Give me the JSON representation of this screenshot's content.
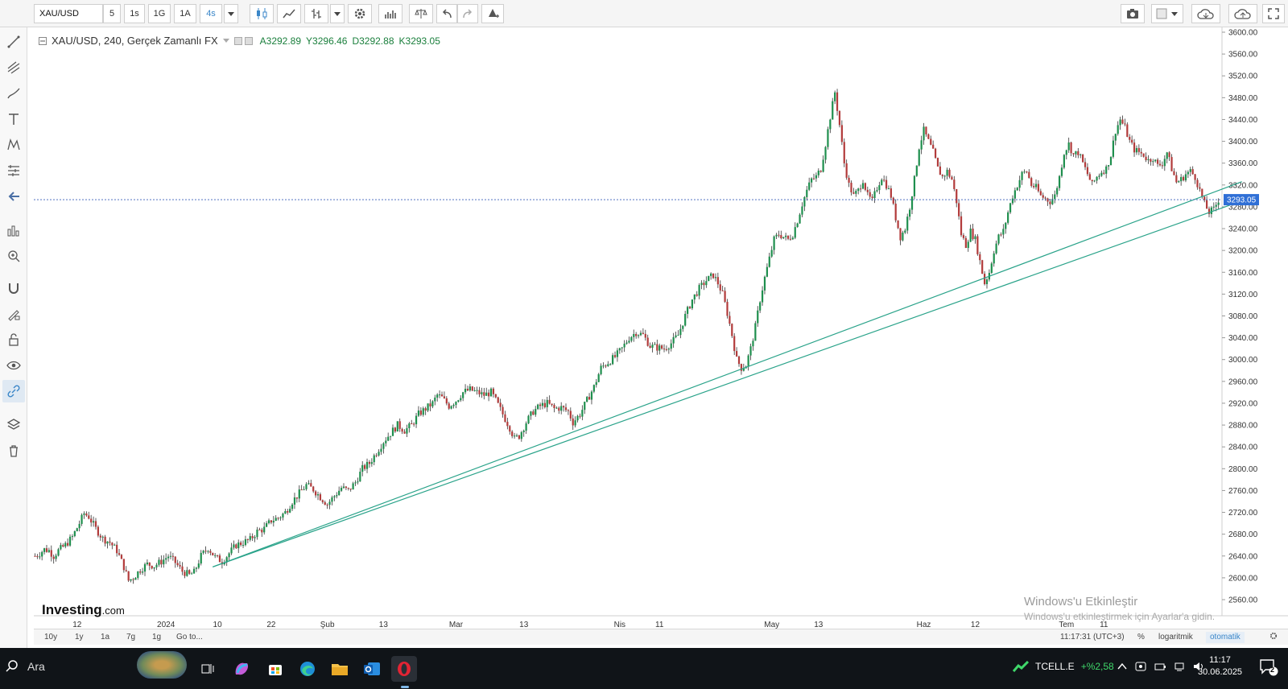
{
  "topbar": {
    "symbol": "XAU/USD",
    "intervals": [
      "5",
      "1s",
      "1G",
      "1A",
      "4s"
    ],
    "active_interval": "4s"
  },
  "legend": {
    "title": "XAU/USD, 240, Gerçek Zamanlı FX",
    "open_label": "A",
    "open": "3292.89",
    "high_label": "Y",
    "high": "3296.46",
    "low_label": "D",
    "low": "3292.88",
    "close_label": "K",
    "close": "3293.05"
  },
  "brand": {
    "logo": "Investing",
    "logo_suffix": ".com"
  },
  "watermark": {
    "title": "Windows'u Etkinleştir",
    "subtitle": "Windows'u etkinleştirmek için Ayarlar'a gidin."
  },
  "price_axis": {
    "ticks": [
      "3600.00",
      "3560.00",
      "3520.00",
      "3480.00",
      "3440.00",
      "3400.00",
      "3360.00",
      "3320.00",
      "3280.00",
      "3240.00",
      "3200.00",
      "3160.00",
      "3120.00",
      "3080.00",
      "3040.00",
      "3000.00",
      "2960.00",
      "2920.00",
      "2880.00",
      "2840.00",
      "2800.00",
      "2760.00",
      "2720.00",
      "2680.00",
      "2640.00",
      "2600.00",
      "2560.00"
    ],
    "current_price_label": "3293.05"
  },
  "time_axis": {
    "ticks": [
      "12",
      "2024",
      "10",
      "22",
      "Şub",
      "13",
      "Mar",
      "13",
      "Nis",
      "11",
      "May",
      "13",
      "Haz",
      "12",
      "Tem",
      "11"
    ]
  },
  "bottombar": {
    "ranges": [
      "10y",
      "1y",
      "1a",
      "7g",
      "1g",
      "Go to..."
    ],
    "clock": "11:17:31 (UTC+3)",
    "percent": "%",
    "log": "logaritmik",
    "auto": "otomatik"
  },
  "taskbar": {
    "search": "Ara",
    "ticker": "TCELL.E",
    "ticker_change": "+%2,58",
    "time": "11:17",
    "date": "30.06.2025",
    "notifications": "2"
  },
  "chart_data": {
    "type": "candlestick",
    "title": "XAU/USD, 240, Gerçek Zamanlı FX",
    "ylim": [
      2540,
      3610
    ],
    "up_color": "#1f8f4e",
    "down_color": "#b23b3b",
    "close_path": [
      [
        0,
        2640
      ],
      [
        2,
        2645
      ],
      [
        4,
        2652
      ],
      [
        6,
        2650
      ],
      [
        8,
        2640
      ],
      [
        10,
        2650
      ],
      [
        13,
        2660
      ],
      [
        16,
        2675
      ],
      [
        19,
        2700
      ],
      [
        21,
        2718
      ],
      [
        23,
        2712
      ],
      [
        26,
        2690
      ],
      [
        29,
        2672
      ],
      [
        32,
        2665
      ],
      [
        35,
        2650
      ],
      [
        38,
        2620
      ],
      [
        40,
        2595
      ],
      [
        42,
        2600
      ],
      [
        45,
        2615
      ],
      [
        48,
        2625
      ],
      [
        51,
        2622
      ],
      [
        54,
        2630
      ],
      [
        57,
        2640
      ],
      [
        60,
        2628
      ],
      [
        63,
        2612
      ],
      [
        66,
        2605
      ],
      [
        68,
        2610
      ],
      [
        71,
        2640
      ],
      [
        74,
        2655
      ],
      [
        77,
        2638
      ],
      [
        80,
        2630
      ],
      [
        83,
        2645
      ],
      [
        86,
        2660
      ],
      [
        89,
        2665
      ],
      [
        92,
        2670
      ],
      [
        95,
        2685
      ],
      [
        98,
        2690
      ],
      [
        101,
        2705
      ],
      [
        104,
        2710
      ],
      [
        107,
        2720
      ],
      [
        110,
        2740
      ],
      [
        113,
        2755
      ],
      [
        116,
        2770
      ],
      [
        119,
        2762
      ],
      [
        122,
        2748
      ],
      [
        125,
        2735
      ],
      [
        128,
        2750
      ],
      [
        131,
        2765
      ],
      [
        134,
        2760
      ],
      [
        137,
        2775
      ],
      [
        140,
        2800
      ],
      [
        143,
        2810
      ],
      [
        146,
        2830
      ],
      [
        149,
        2850
      ],
      [
        152,
        2865
      ],
      [
        155,
        2880
      ],
      [
        158,
        2870
      ],
      [
        161,
        2880
      ],
      [
        164,
        2900
      ],
      [
        167,
        2910
      ],
      [
        170,
        2920
      ],
      [
        172,
        2935
      ],
      [
        174,
        2930
      ],
      [
        177,
        2915
      ],
      [
        180,
        2925
      ],
      [
        183,
        2940
      ],
      [
        186,
        2945
      ],
      [
        189,
        2940
      ],
      [
        192,
        2935
      ],
      [
        195,
        2940
      ],
      [
        197,
        2925
      ],
      [
        200,
        2900
      ],
      [
        203,
        2875
      ],
      [
        205,
        2855
      ],
      [
        207,
        2860
      ],
      [
        210,
        2885
      ],
      [
        213,
        2905
      ],
      [
        216,
        2915
      ],
      [
        219,
        2920
      ],
      [
        222,
        2910
      ],
      [
        225,
        2912
      ],
      [
        228,
        2905
      ],
      [
        230,
        2885
      ],
      [
        233,
        2900
      ],
      [
        236,
        2925
      ],
      [
        239,
        2950
      ],
      [
        242,
        2985
      ],
      [
        245,
        2995
      ],
      [
        248,
        3005
      ],
      [
        251,
        3020
      ],
      [
        254,
        3040
      ],
      [
        257,
        3050
      ],
      [
        260,
        3045
      ],
      [
        263,
        3025
      ],
      [
        266,
        3022
      ],
      [
        269,
        3020
      ],
      [
        272,
        3030
      ],
      [
        275,
        3045
      ],
      [
        278,
        3080
      ],
      [
        281,
        3110
      ],
      [
        284,
        3130
      ],
      [
        287,
        3145
      ],
      [
        290,
        3155
      ],
      [
        292,
        3140
      ],
      [
        294,
        3120
      ],
      [
        296,
        3085
      ],
      [
        298,
        3045
      ],
      [
        300,
        3000
      ],
      [
        302,
        2985
      ],
      [
        304,
        2990
      ],
      [
        306,
        3020
      ],
      [
        308,
        3060
      ],
      [
        310,
        3110
      ],
      [
        312,
        3150
      ],
      [
        314,
        3185
      ],
      [
        316,
        3220
      ],
      [
        318,
        3230
      ],
      [
        320,
        3225
      ],
      [
        322,
        3220
      ],
      [
        324,
        3230
      ],
      [
        326,
        3255
      ],
      [
        328,
        3285
      ],
      [
        330,
        3310
      ],
      [
        332,
        3330
      ],
      [
        334,
        3335
      ],
      [
        336,
        3350
      ],
      [
        338,
        3395
      ],
      [
        340,
        3445
      ],
      [
        342,
        3490
      ],
      [
        344,
        3430
      ],
      [
        346,
        3360
      ],
      [
        348,
        3320
      ],
      [
        350,
        3300
      ],
      [
        352,
        3310
      ],
      [
        354,
        3330
      ],
      [
        356,
        3300
      ],
      [
        358,
        3290
      ],
      [
        360,
        3315
      ],
      [
        362,
        3335
      ],
      [
        364,
        3320
      ],
      [
        366,
        3300
      ],
      [
        368,
        3260
      ],
      [
        370,
        3225
      ],
      [
        372,
        3240
      ],
      [
        374,
        3280
      ],
      [
        376,
        3330
      ],
      [
        378,
        3390
      ],
      [
        380,
        3420
      ],
      [
        382,
        3400
      ],
      [
        384,
        3380
      ],
      [
        386,
        3350
      ],
      [
        388,
        3335
      ],
      [
        390,
        3345
      ],
      [
        392,
        3330
      ],
      [
        394,
        3290
      ],
      [
        396,
        3230
      ],
      [
        398,
        3210
      ],
      [
        400,
        3235
      ],
      [
        402,
        3220
      ],
      [
        404,
        3180
      ],
      [
        406,
        3140
      ],
      [
        408,
        3160
      ],
      [
        410,
        3200
      ],
      [
        412,
        3225
      ],
      [
        414,
        3235
      ],
      [
        416,
        3270
      ],
      [
        418,
        3300
      ],
      [
        420,
        3320
      ],
      [
        422,
        3340
      ],
      [
        424,
        3345
      ],
      [
        426,
        3320
      ],
      [
        428,
        3315
      ],
      [
        430,
        3300
      ],
      [
        432,
        3295
      ],
      [
        434,
        3290
      ],
      [
        436,
        3300
      ],
      [
        438,
        3335
      ],
      [
        440,
        3380
      ],
      [
        442,
        3395
      ],
      [
        444,
        3375
      ],
      [
        446,
        3380
      ],
      [
        448,
        3360
      ],
      [
        450,
        3340
      ],
      [
        452,
        3320
      ],
      [
        454,
        3335
      ],
      [
        456,
        3345
      ],
      [
        458,
        3350
      ],
      [
        460,
        3375
      ],
      [
        462,
        3420
      ],
      [
        464,
        3440
      ],
      [
        466,
        3425
      ],
      [
        468,
        3400
      ],
      [
        470,
        3385
      ],
      [
        472,
        3380
      ],
      [
        474,
        3375
      ],
      [
        476,
        3365
      ],
      [
        478,
        3370
      ],
      [
        480,
        3355
      ],
      [
        482,
        3360
      ],
      [
        484,
        3380
      ],
      [
        486,
        3350
      ],
      [
        488,
        3325
      ],
      [
        490,
        3330
      ],
      [
        492,
        3340
      ],
      [
        494,
        3345
      ],
      [
        496,
        3335
      ],
      [
        498,
        3310
      ],
      [
        500,
        3285
      ],
      [
        502,
        3270
      ],
      [
        504,
        3275
      ],
      [
        506,
        3293
      ]
    ],
    "trendlines": [
      {
        "from": [
          76,
          2620
        ],
        "to": [
          516,
          3326
        ]
      },
      {
        "from": [
          76,
          2620
        ],
        "to": [
          520,
          3297
        ]
      }
    ],
    "current_price": 3293.05
  }
}
